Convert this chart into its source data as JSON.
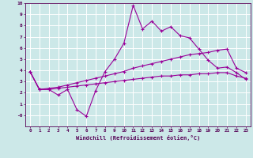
{
  "xlabel": "Windchill (Refroidissement éolien,°C)",
  "x": [
    0,
    1,
    2,
    3,
    4,
    5,
    6,
    7,
    8,
    9,
    10,
    11,
    12,
    13,
    14,
    15,
    16,
    17,
    18,
    19,
    20,
    21,
    22,
    23
  ],
  "line1": [
    3.9,
    2.3,
    2.3,
    1.8,
    2.3,
    0.5,
    -0.1,
    2.2,
    3.9,
    5.0,
    6.4,
    9.8,
    7.7,
    8.4,
    7.5,
    7.9,
    7.1,
    6.9,
    5.9,
    4.9,
    4.2,
    4.3,
    3.8,
    3.2
  ],
  "line2": [
    3.9,
    2.3,
    2.4,
    2.5,
    2.7,
    2.9,
    3.1,
    3.3,
    3.5,
    3.7,
    3.9,
    4.2,
    4.4,
    4.6,
    4.8,
    5.0,
    5.2,
    5.4,
    5.5,
    5.6,
    5.8,
    5.9,
    4.2,
    3.8
  ],
  "line3": [
    3.9,
    2.3,
    2.3,
    2.4,
    2.5,
    2.6,
    2.7,
    2.8,
    2.9,
    3.0,
    3.1,
    3.2,
    3.3,
    3.4,
    3.5,
    3.5,
    3.6,
    3.6,
    3.7,
    3.7,
    3.8,
    3.8,
    3.5,
    3.3
  ],
  "line_color": "#990099",
  "bg_color": "#cce8e8",
  "grid_color": "#ffffff",
  "ylim": [
    -1,
    10
  ],
  "yticks": [
    0,
    1,
    2,
    3,
    4,
    5,
    6,
    7,
    8,
    9,
    10
  ],
  "ytick_labels": [
    "-0",
    "1",
    "2",
    "3",
    "4",
    "5",
    "6",
    "7",
    "8",
    "9",
    "10"
  ]
}
